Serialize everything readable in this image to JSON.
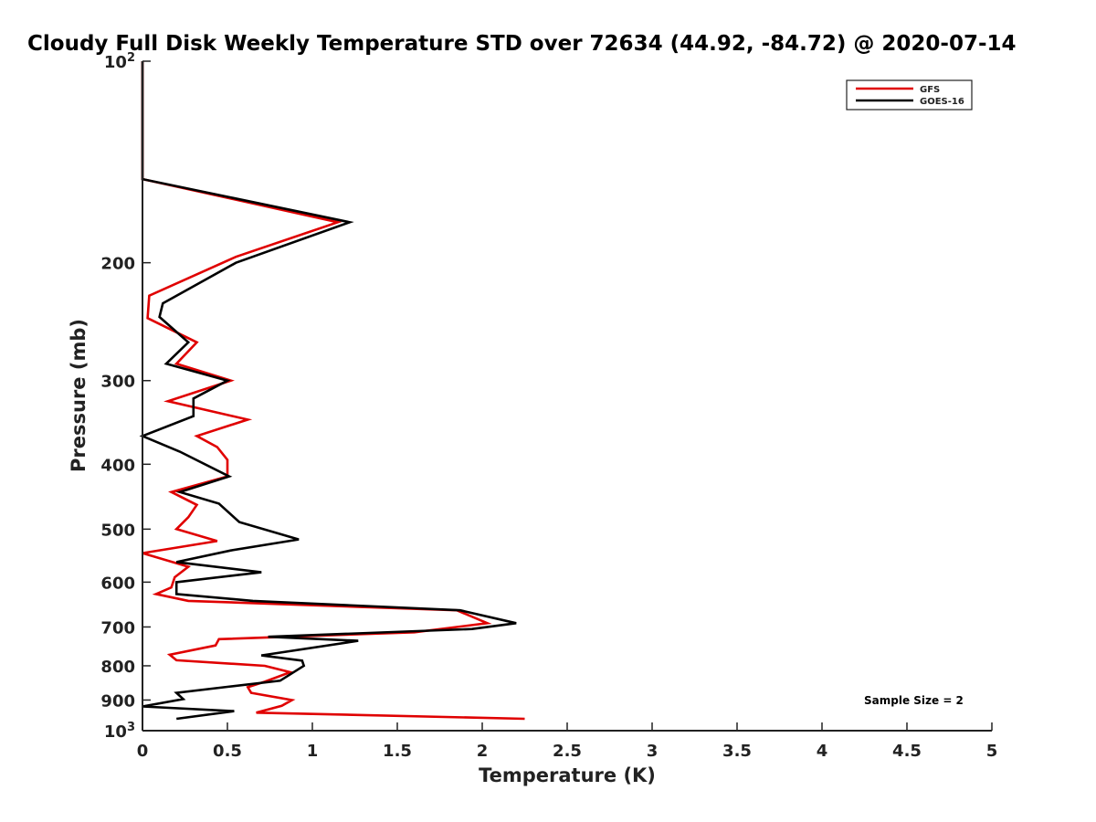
{
  "chart_data": {
    "type": "line",
    "title": "Cloudy Full Disk Weekly Temperature STD over 72634 (44.92, -84.72) @ 2020-07-14",
    "xlabel": "Temperature (K)",
    "ylabel": "Pressure (mb)",
    "xlim": [
      0,
      5
    ],
    "ylim": [
      100,
      1000
    ],
    "y_scale": "log",
    "y_reversed": true,
    "x_ticks": [
      {
        "value": 0,
        "label": "0"
      },
      {
        "value": 0.5,
        "label": "0.5"
      },
      {
        "value": 1,
        "label": "1"
      },
      {
        "value": 1.5,
        "label": "1.5"
      },
      {
        "value": 2,
        "label": "2"
      },
      {
        "value": 2.5,
        "label": "2.5"
      },
      {
        "value": 3,
        "label": "3"
      },
      {
        "value": 3.5,
        "label": "3.5"
      },
      {
        "value": 4,
        "label": "4"
      },
      {
        "value": 4.5,
        "label": "4.5"
      },
      {
        "value": 5,
        "label": "5"
      }
    ],
    "y_ticks": [
      {
        "value": 100,
        "label": "10",
        "sup": "2"
      },
      {
        "value": 200,
        "label": "200",
        "sup": ""
      },
      {
        "value": 300,
        "label": "300",
        "sup": ""
      },
      {
        "value": 400,
        "label": "400",
        "sup": ""
      },
      {
        "value": 500,
        "label": "500",
        "sup": ""
      },
      {
        "value": 600,
        "label": "600",
        "sup": ""
      },
      {
        "value": 700,
        "label": "700",
        "sup": ""
      },
      {
        "value": 800,
        "label": "800",
        "sup": ""
      },
      {
        "value": 900,
        "label": "900",
        "sup": ""
      },
      {
        "value": 1000,
        "label": "10",
        "sup": "3"
      }
    ],
    "grid": false,
    "legend_position": "top-right",
    "annotation": "Sample Size = 2",
    "series": [
      {
        "name": "GFS",
        "color": "#e00000",
        "points": [
          [
            0.0,
            100
          ],
          [
            0.0,
            150
          ],
          [
            1.15,
            174
          ],
          [
            0.55,
            196
          ],
          [
            0.04,
            224
          ],
          [
            0.03,
            242
          ],
          [
            0.32,
            263
          ],
          [
            0.2,
            283
          ],
          [
            0.52,
            300
          ],
          [
            0.15,
            322
          ],
          [
            0.62,
            343
          ],
          [
            0.32,
            363
          ],
          [
            0.44,
            377
          ],
          [
            0.5,
            394
          ],
          [
            0.5,
            417
          ],
          [
            0.17,
            440
          ],
          [
            0.32,
            460
          ],
          [
            0.27,
            480
          ],
          [
            0.2,
            500
          ],
          [
            0.44,
            521
          ],
          [
            0.0,
            543
          ],
          [
            0.27,
            569
          ],
          [
            0.19,
            590
          ],
          [
            0.17,
            611
          ],
          [
            0.08,
            625
          ],
          [
            0.27,
            640
          ],
          [
            1.85,
            661
          ],
          [
            2.03,
            691
          ],
          [
            1.6,
            713
          ],
          [
            0.45,
            730
          ],
          [
            0.43,
            746
          ],
          [
            0.16,
            770
          ],
          [
            0.2,
            785
          ],
          [
            0.72,
            800
          ],
          [
            0.87,
            818
          ],
          [
            0.72,
            845
          ],
          [
            0.62,
            861
          ],
          [
            0.64,
            878
          ],
          [
            0.88,
            900
          ],
          [
            0.82,
            918
          ],
          [
            0.67,
            940
          ],
          [
            2.25,
            960
          ]
        ]
      },
      {
        "name": "GOES-16",
        "color": "#000000",
        "points": [
          [
            0.0,
            100
          ],
          [
            0.0,
            150
          ],
          [
            1.22,
            174
          ],
          [
            0.55,
            200
          ],
          [
            0.12,
            230
          ],
          [
            0.1,
            241
          ],
          [
            0.27,
            263
          ],
          [
            0.14,
            283
          ],
          [
            0.5,
            300
          ],
          [
            0.3,
            319
          ],
          [
            0.3,
            339
          ],
          [
            0.0,
            363
          ],
          [
            0.22,
            383
          ],
          [
            0.51,
            417
          ],
          [
            0.22,
            440
          ],
          [
            0.45,
            458
          ],
          [
            0.57,
            488
          ],
          [
            0.92,
            518
          ],
          [
            0.52,
            538
          ],
          [
            0.2,
            560
          ],
          [
            0.7,
            580
          ],
          [
            0.2,
            600
          ],
          [
            0.2,
            625
          ],
          [
            0.65,
            640
          ],
          [
            1.87,
            661
          ],
          [
            2.2,
            691
          ],
          [
            1.94,
            705
          ],
          [
            0.74,
            724
          ],
          [
            1.27,
            734
          ],
          [
            0.7,
            772
          ],
          [
            0.94,
            786
          ],
          [
            0.95,
            800
          ],
          [
            0.81,
            842
          ],
          [
            0.5,
            860
          ],
          [
            0.2,
            878
          ],
          [
            0.24,
            897
          ],
          [
            0.0,
            920
          ],
          [
            0.54,
            935
          ],
          [
            0.2,
            960
          ]
        ]
      }
    ]
  }
}
